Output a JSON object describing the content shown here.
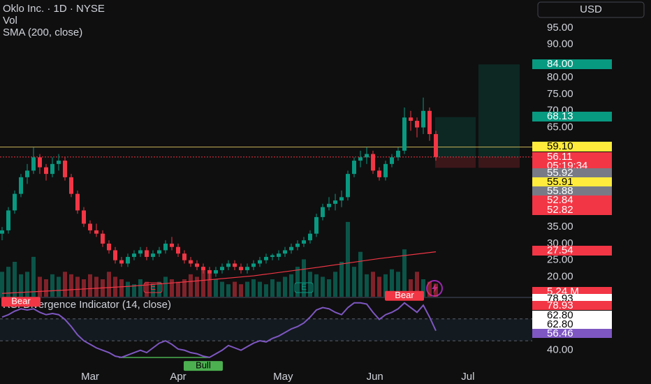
{
  "chart_data": {
    "type": "candlestick",
    "title": "Oklo Inc. · 1D · NYSE",
    "currency": "USD",
    "up_color": "#089981",
    "down_color": "#f23645",
    "ylim": [
      14,
      103.4
    ],
    "yticks": [
      {
        "value": 95,
        "label": "95.00"
      },
      {
        "value": 90,
        "label": "90.00"
      },
      {
        "value": 80,
        "label": "80.00"
      },
      {
        "value": 75,
        "label": "75.00"
      },
      {
        "value": 70,
        "label": "70.00"
      },
      {
        "value": 65,
        "label": "65.00"
      },
      {
        "value": 35,
        "label": "35.00"
      },
      {
        "value": 30,
        "label": "30.00"
      },
      {
        "value": 25,
        "label": "25.00"
      },
      {
        "value": 20,
        "label": "20.00"
      }
    ],
    "xticks": [
      {
        "value": 14,
        "label": "Mar"
      },
      {
        "value": 28,
        "label": "Apr"
      },
      {
        "value": 44.7,
        "label": "May"
      },
      {
        "value": 59.3,
        "label": "Jun"
      },
      {
        "value": 74.1,
        "label": "Jul"
      }
    ],
    "candles": {
      "open": [
        33,
        34,
        40,
        45,
        50,
        52,
        56,
        53,
        51,
        54,
        55,
        50,
        45,
        40,
        36,
        34,
        33,
        30,
        28,
        25,
        24,
        26,
        27,
        28,
        26,
        27,
        28,
        30,
        29,
        27,
        25,
        24,
        23,
        22,
        21,
        22,
        23,
        24,
        23,
        22,
        23,
        24,
        25,
        26,
        26,
        27,
        28,
        29,
        30,
        31,
        33,
        38,
        41,
        42,
        43,
        44,
        51,
        55,
        56,
        57,
        52,
        50,
        54,
        56,
        58,
        68,
        67,
        65,
        70,
        63
      ],
      "high": [
        35,
        41,
        46,
        51,
        54,
        59,
        57,
        54,
        56,
        57,
        56,
        51,
        46,
        41,
        37,
        36,
        34,
        31,
        29,
        26,
        27,
        28,
        29,
        29,
        28,
        29,
        31,
        32,
        30,
        28,
        26,
        25,
        24,
        23,
        23,
        24,
        25,
        25,
        24,
        24,
        25,
        26,
        27,
        27,
        28,
        29,
        30,
        31,
        32,
        34,
        39,
        42,
        44,
        45,
        46,
        52,
        56,
        58,
        59,
        58,
        53,
        55,
        57,
        59,
        71,
        70,
        68,
        74,
        71,
        64
      ],
      "low": [
        31,
        33,
        39,
        44,
        48,
        51,
        51,
        49,
        50,
        52,
        49,
        44,
        39,
        35,
        33,
        32,
        29,
        27,
        24,
        23,
        23,
        25,
        26,
        25,
        25,
        26,
        27,
        28,
        26,
        24,
        23,
        22,
        21,
        19,
        20,
        21,
        22,
        22,
        21,
        21,
        22,
        23,
        24,
        25,
        25,
        26,
        27,
        28,
        29,
        30,
        32,
        37,
        40,
        40,
        41,
        43,
        50,
        53,
        54,
        51,
        49,
        49,
        53,
        55,
        57,
        64,
        62,
        63,
        61,
        55
      ],
      "close": [
        34,
        40,
        45,
        50,
        52,
        56,
        53,
        51,
        54,
        55,
        50,
        45,
        40,
        36,
        34,
        33,
        30,
        28,
        25,
        24,
        26,
        27,
        28,
        26,
        27,
        28,
        30,
        29,
        27,
        25,
        24,
        23,
        22,
        21,
        22,
        23,
        24,
        23,
        22,
        23,
        24,
        25,
        26,
        26.5,
        27,
        28,
        29,
        30,
        31,
        33,
        38,
        41,
        42,
        43,
        44,
        51,
        55,
        56,
        57,
        52,
        50,
        54,
        56,
        58,
        68,
        67,
        65,
        70,
        63,
        56.11
      ]
    },
    "volume": {
      "name": "Vol",
      "lim": [
        0,
        119
      ],
      "values": [
        10,
        12,
        14,
        9,
        10,
        16,
        8,
        7,
        9,
        8,
        10,
        9,
        8,
        7,
        9,
        8,
        7,
        10,
        8,
        7,
        6,
        5,
        7,
        6,
        5,
        6,
        8,
        7,
        6,
        7,
        9,
        8,
        12,
        10,
        7,
        6,
        5,
        6,
        5,
        6,
        7,
        6,
        5,
        7,
        6,
        8,
        9,
        12,
        15,
        10,
        9,
        8,
        7,
        10,
        14,
        30,
        12,
        18,
        9,
        10,
        8,
        9,
        11,
        10,
        19,
        7,
        10,
        7,
        6,
        5.24
      ]
    },
    "sma": {
      "name": "SMA (200, close)",
      "color": "#f23645",
      "x": [
        0,
        10,
        20,
        30,
        40,
        50,
        60,
        69
      ],
      "values": [
        15,
        16,
        17.1,
        18.6,
        20.3,
        22.8,
        25.5,
        27.54
      ]
    },
    "price_labels": [
      {
        "value": 84,
        "label": "84.00"
      },
      {
        "value": 68.13,
        "label": "68.13"
      },
      {
        "value": 59.1,
        "label": "59.10"
      },
      {
        "value": 56.11,
        "label": "56.11",
        "countdown": "05:19:34"
      },
      {
        "value": 55.92,
        "label": "55.92"
      },
      {
        "value": 55.91,
        "label": "55.91"
      },
      {
        "value": 55.88,
        "label": "55.88"
      },
      {
        "value": 52.84,
        "label": "52.84"
      },
      {
        "value": 52.82,
        "label": "52.82"
      },
      {
        "value": 27.54,
        "label": "27.54"
      },
      {
        "value": 5.24,
        "label": "5.24 M"
      }
    ],
    "events": [
      {
        "label": "E",
        "index": 24
      },
      {
        "label": "E",
        "index": 48
      }
    ],
    "rsi": {
      "title": "RSI Divergence Indicator (14, close)",
      "color": "#7e57c2",
      "ylim": [
        28,
        84
      ],
      "bands": [
        66.5,
        48
      ],
      "yticks": [
        {
          "value": 40,
          "label": "40.00"
        }
      ],
      "values": [
        68,
        70,
        73,
        75,
        74,
        75,
        72,
        70,
        71,
        70,
        66,
        60,
        53,
        48,
        45,
        42,
        40,
        38,
        35,
        34,
        36,
        38,
        40,
        38,
        42,
        46,
        48,
        45,
        41,
        40,
        38,
        37,
        35,
        34,
        37,
        40,
        44,
        42,
        40,
        43,
        46,
        48,
        47,
        50,
        52,
        55,
        58,
        60,
        63,
        68,
        74,
        76,
        75,
        72,
        70,
        76,
        80,
        80,
        79,
        72,
        66,
        70,
        72,
        75,
        80,
        76,
        72,
        78,
        68,
        56.46
      ],
      "labels": [
        {
          "value": 78.93,
          "label": "78.93"
        },
        {
          "value": 78.93,
          "label": "78.93"
        },
        {
          "value": 62.8,
          "label": "62.80"
        },
        {
          "value": 62.8,
          "label": "62.80"
        },
        {
          "value": 56.46,
          "label": "56.46"
        }
      ],
      "signals": [
        {
          "label": "Bear",
          "index": 3,
          "color": "#f23645"
        },
        {
          "label": "Bear",
          "index": 64,
          "color": "#f23645"
        },
        {
          "label": "Bull",
          "index": 32,
          "color": "#4caf50"
        }
      ]
    }
  }
}
